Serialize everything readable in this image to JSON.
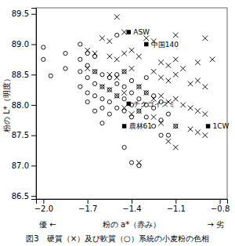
{
  "chart_data": {
    "type": "scatter",
    "title": "図3　硬質（×）及び軟質（○）系統の小麦粉の色相",
    "x_label": "粉の a*（赤み）",
    "y_label": "粉の L*（明度）",
    "annotations": [
      "優 ←",
      "→ 劣"
    ],
    "xlim": [
      -2.05,
      -0.75
    ],
    "ylim": [
      86.45,
      89.6
    ],
    "xticks": [
      {
        "value": -2.0,
        "label": "−2.0"
      },
      {
        "value": -1.7,
        "label": "−1.7"
      },
      {
        "value": -1.4,
        "label": "−1.4"
      },
      {
        "value": -1.1,
        "label": "−1.1"
      },
      {
        "value": -0.8,
        "label": "−0.8"
      }
    ],
    "yticks": [
      86.5,
      {
        "value": 87.0,
        "label": "87.0"
      },
      87.5,
      {
        "value": 88.0,
        "label": "88.0"
      },
      88.5,
      {
        "value": 89.0,
        "label": "89.0"
      },
      89.5
    ],
    "series": [
      {
        "marker": "circle",
        "color": "#000000",
        "x": [
          -2.0,
          -2.0,
          -1.95,
          -1.85,
          -1.85,
          -1.75,
          -1.75,
          -1.75,
          -1.75,
          -1.7,
          -1.7,
          -1.7,
          -1.7,
          -1.7,
          -1.65,
          -1.65,
          -1.65,
          -1.65,
          -1.65,
          -1.6,
          -1.6,
          -1.6,
          -1.6,
          -1.6,
          -1.55,
          -1.55,
          -1.55,
          -1.55,
          -1.5,
          -1.5,
          -1.5,
          -1.5,
          -1.5,
          -1.45,
          -1.45,
          -1.45,
          -1.45,
          -1.4,
          -1.4,
          -1.4,
          -1.4,
          -1.35,
          -1.35,
          -1.35,
          -1.3,
          -1.3,
          -1.3,
          -1.3,
          -1.25,
          -1.25,
          -1.25,
          -1.2,
          -1.2,
          -1.2,
          -1.15,
          -1.15,
          -1.1,
          -1.45,
          -1.4,
          -1.35
        ],
        "values": [
          88.95,
          88.75,
          88.48,
          88.85,
          88.6,
          89.0,
          88.75,
          88.55,
          88.3,
          88.85,
          88.65,
          88.45,
          88.2,
          88.05,
          88.8,
          88.55,
          88.35,
          88.15,
          87.9,
          88.5,
          88.3,
          88.1,
          87.95,
          87.7,
          88.45,
          88.25,
          88.05,
          87.85,
          89.15,
          88.5,
          88.35,
          88.15,
          87.95,
          88.55,
          88.3,
          88.1,
          87.9,
          88.4,
          88.2,
          88.0,
          87.8,
          88.3,
          88.1,
          87.9,
          88.45,
          88.2,
          88.0,
          87.8,
          88.15,
          87.95,
          87.65,
          88.05,
          87.75,
          87.5,
          87.85,
          87.5,
          87.65,
          87.3,
          87.05,
          87.0
        ]
      },
      {
        "marker": "x",
        "color": "#000000",
        "x": [
          -1.5,
          -1.45,
          -1.6,
          -1.55,
          -1.3,
          -1.25,
          -1.1,
          -0.9,
          -1.7,
          -1.65,
          -1.55,
          -1.5,
          -1.45,
          -1.4,
          -1.35,
          -1.2,
          -1.15,
          -1.1,
          -1.05,
          -0.95,
          -0.85,
          -1.7,
          -1.65,
          -1.55,
          -1.5,
          -1.45,
          -1.4,
          -1.25,
          -1.2,
          -1.15,
          -1.1,
          -1.0,
          -0.95,
          -0.9,
          -1.6,
          -1.55,
          -1.5,
          -1.45,
          -1.35,
          -1.3,
          -1.25,
          -1.2,
          -1.15,
          -1.1,
          -1.05,
          -1.0,
          -0.95,
          -0.9,
          -1.45,
          -1.4,
          -1.35,
          -1.25,
          -1.2,
          -1.1,
          -1.0,
          -0.95,
          -0.9,
          -1.15,
          -1.1,
          -1.35
        ],
        "values": [
          89.45,
          89.2,
          89.1,
          89.05,
          89.1,
          89.05,
          89.15,
          89.1,
          88.9,
          88.85,
          88.8,
          88.75,
          88.85,
          88.9,
          88.8,
          88.7,
          88.65,
          88.75,
          88.6,
          88.7,
          88.75,
          88.6,
          88.55,
          88.5,
          88.45,
          88.55,
          88.6,
          88.55,
          88.45,
          88.4,
          88.5,
          88.35,
          88.4,
          88.3,
          88.3,
          88.25,
          88.15,
          88.2,
          88.3,
          88.2,
          88.1,
          88.15,
          88.05,
          88.1,
          88.0,
          87.95,
          87.9,
          87.85,
          87.95,
          87.85,
          87.9,
          87.8,
          87.7,
          87.65,
          87.6,
          87.55,
          87.5,
          87.4,
          87.3,
          87.05
        ]
      },
      {
        "marker": "square",
        "color": "#000000",
        "x": [
          -1.42,
          -1.3,
          -1.42,
          -1.45,
          -0.88
        ],
        "values": [
          89.2,
          89.0,
          88.02,
          87.65,
          87.65
        ],
        "labels": [
          "ASW",
          "中国140",
          "チクゴイズミ",
          "農林61",
          "1CW"
        ]
      }
    ]
  }
}
